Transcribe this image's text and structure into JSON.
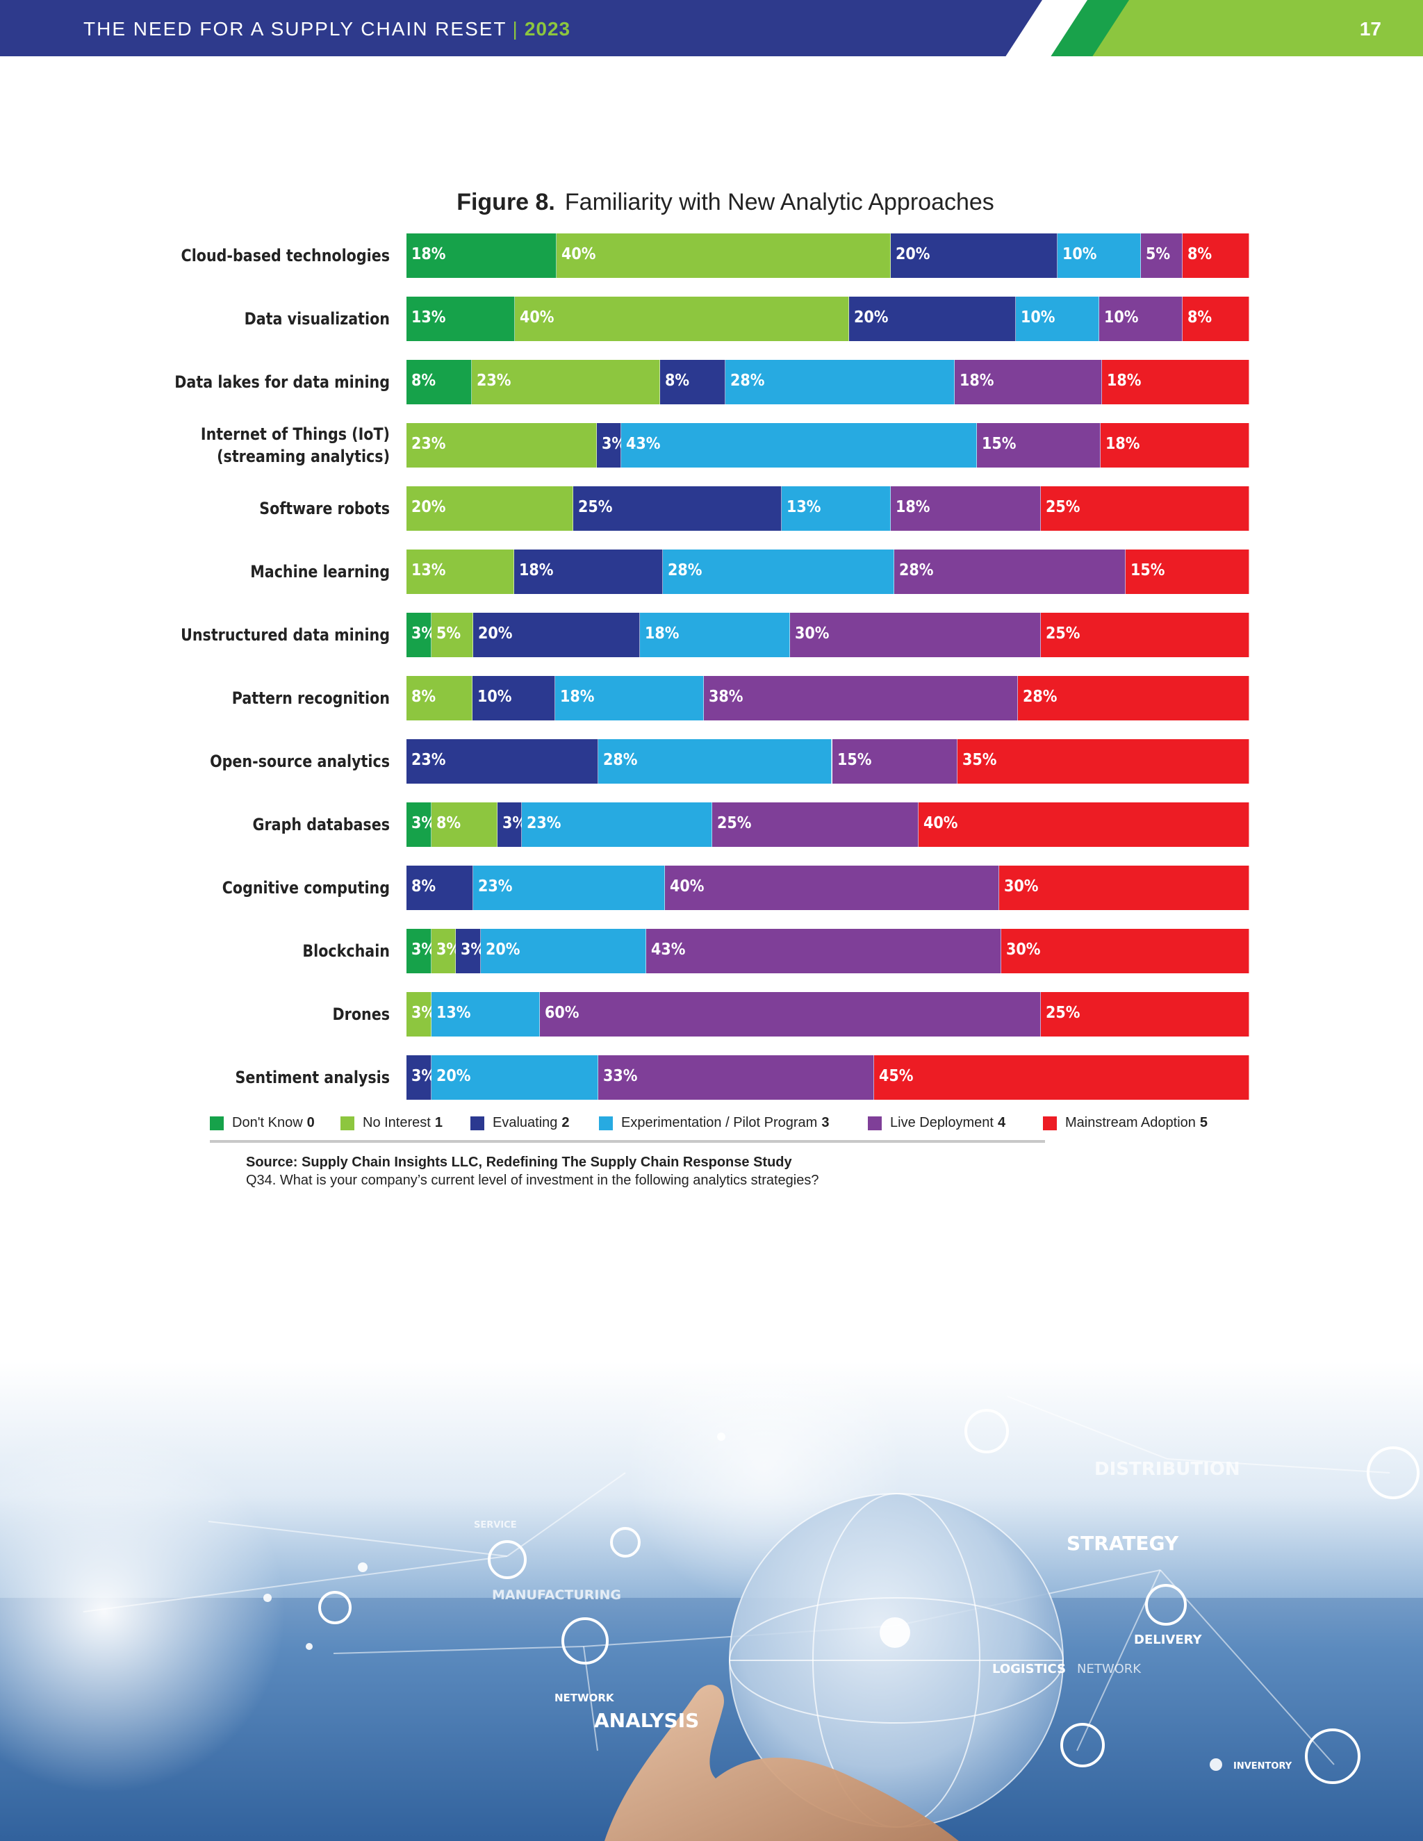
{
  "header": {
    "title": "THE NEED FOR A SUPPLY CHAIN RESET",
    "separator": "|",
    "year": "2023",
    "page_number": "17"
  },
  "figure": {
    "number": "Figure 8.",
    "title": "Familiarity with New Analytic Approaches"
  },
  "chart_data": {
    "type": "bar",
    "orientation": "horizontal",
    "stacked": true,
    "normalized": true,
    "categories": [
      "Cloud-based technologies",
      "Data visualization",
      "Data lakes for data mining",
      "Internet of Things (IoT)\n(streaming analytics)",
      "Software robots",
      "Machine learning",
      "Unstructured data mining",
      "Pattern recognition",
      "Open-source analytics",
      "Graph databases",
      "Cognitive computing",
      "Blockchain",
      "Drones",
      "Sentiment analysis"
    ],
    "series": [
      {
        "name": "Don't Know",
        "level": "0",
        "color": "#16a24a",
        "values": [
          18,
          13,
          8,
          0,
          0,
          0,
          3,
          0,
          0,
          3,
          0,
          3,
          0,
          0
        ]
      },
      {
        "name": "No Interest",
        "level": "1",
        "color": "#8dc63f",
        "values": [
          40,
          40,
          23,
          23,
          20,
          13,
          5,
          8,
          0,
          8,
          0,
          3,
          3,
          0
        ]
      },
      {
        "name": "Evaluating",
        "level": "2",
        "color": "#2b3990",
        "values": [
          20,
          20,
          8,
          3,
          25,
          18,
          20,
          10,
          23,
          3,
          8,
          3,
          0,
          3
        ]
      },
      {
        "name": "Experimentation / Pilot Program",
        "level": "3",
        "color": "#27aae1",
        "values": [
          10,
          10,
          28,
          43,
          13,
          28,
          18,
          18,
          28,
          23,
          23,
          20,
          13,
          20
        ]
      },
      {
        "name": "Live Deployment",
        "level": "4",
        "color": "#7f3f98",
        "values": [
          5,
          10,
          18,
          15,
          18,
          28,
          30,
          38,
          15,
          25,
          40,
          43,
          60,
          33
        ]
      },
      {
        "name": "Mainstream Adoption",
        "level": "5",
        "color": "#ed1c24",
        "values": [
          8,
          8,
          18,
          18,
          25,
          15,
          25,
          28,
          35,
          40,
          30,
          30,
          25,
          45
        ]
      }
    ],
    "value_suffix": "%",
    "legend_position": "bottom",
    "grid": false
  },
  "source": {
    "label": "Source:",
    "text": "Supply Chain Insights LLC, Redefining The Supply Chain Response Study",
    "question": "Q34. What is your company’s current level of investment in the following analytics strategies?"
  },
  "illustration": {
    "words": [
      "DISTRIBUTION",
      "STRATEGY",
      "MANUFACTURING",
      "SERVICE",
      "DELIVERY",
      "LOGISTICS",
      "NETWORK",
      "NETWORK",
      "ANALYSIS",
      "INVENTORY"
    ]
  }
}
